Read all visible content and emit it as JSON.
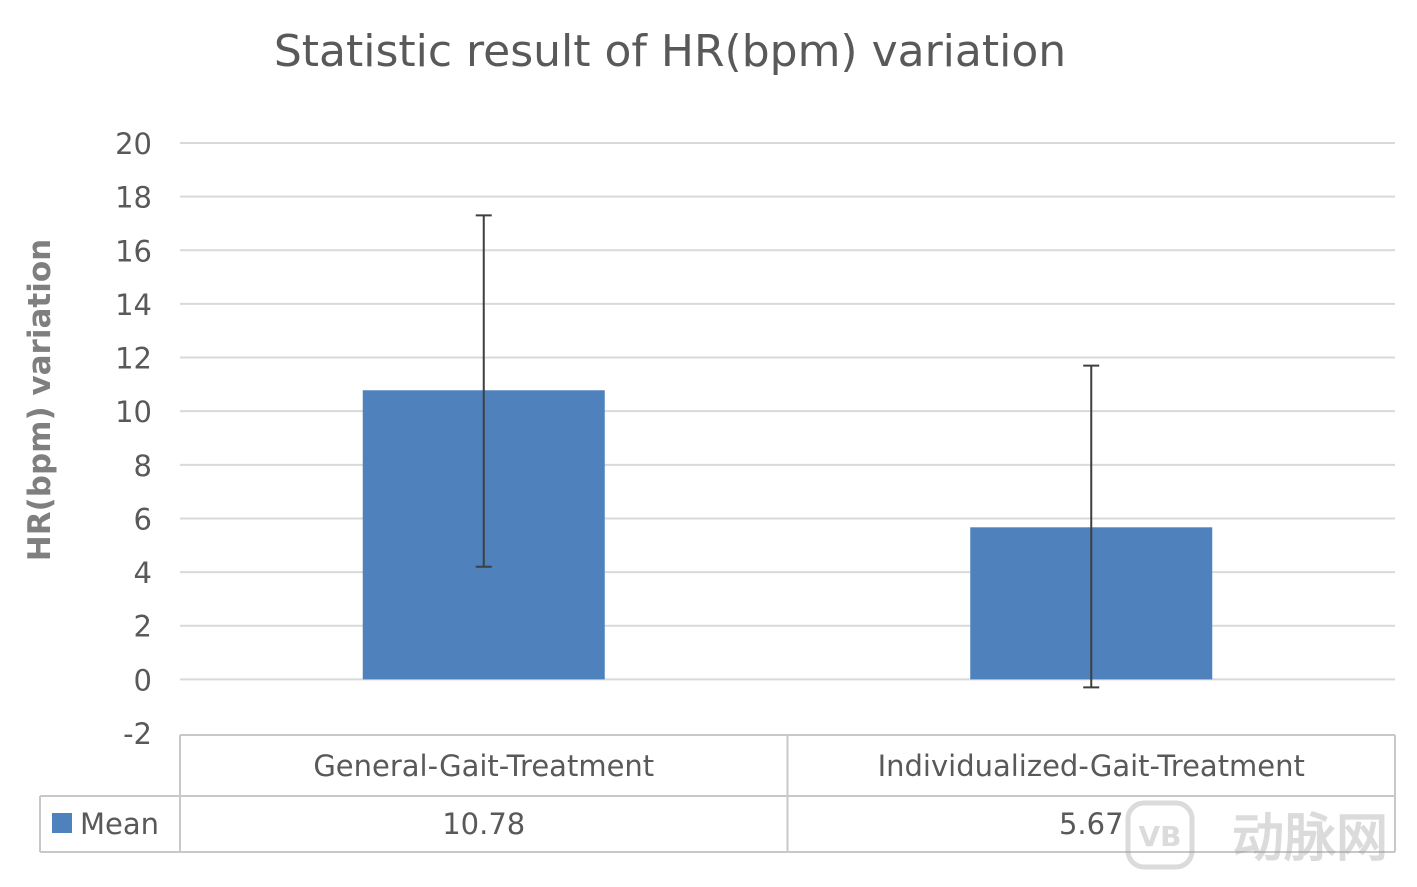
{
  "chart_data": {
    "type": "bar",
    "title": "Statistic result of HR(bpm) variation",
    "ylabel": "HR(bpm) variation",
    "xlabel": "",
    "categories": [
      "General-Gait-Treatment",
      "Individualized-Gait-Treatment"
    ],
    "series": [
      {
        "name": "Mean",
        "values": [
          10.78,
          5.67
        ],
        "value_labels": [
          "10.78",
          "5.67"
        ],
        "error_upper": [
          17.3,
          11.7
        ],
        "error_lower": [
          4.2,
          -0.3
        ],
        "color": "#4f81bd"
      }
    ],
    "ylim": [
      -2,
      20
    ],
    "yticks": [
      -2,
      0,
      2,
      4,
      6,
      8,
      10,
      12,
      14,
      16,
      18,
      20
    ],
    "grid": true,
    "legend": "data-table",
    "colors": {
      "bar": "#4f81bd",
      "grid": "#d9d9d9",
      "text": "#595959",
      "errorbar": "#3f3f3f"
    }
  },
  "watermark": {
    "text": "动脉网",
    "logo": "VB"
  }
}
